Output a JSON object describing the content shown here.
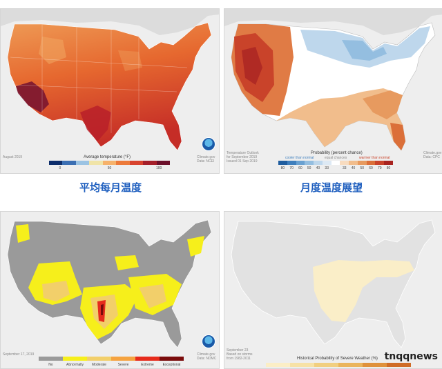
{
  "panels": {
    "avg_temp": {
      "date": "August 2019",
      "credit_line1": "Climate.gov",
      "credit_line2": "Data: NCEI",
      "legend_title": "Average temperature (°F)",
      "ticks": [
        "0",
        "50",
        "100"
      ],
      "colors": [
        "#0c2d6b",
        "#3b6fb3",
        "#9bc3e3",
        "#f0e4a8",
        "#f6b26b",
        "#ec7a3a",
        "#d8432e",
        "#a51f2a",
        "#6b0f2a"
      ]
    },
    "outlook": {
      "issuer_line1": "Temperature Outlook",
      "issuer_line2": "for September 2019",
      "issuer_line3": "Issued 01 Sep 2019",
      "credit_line1": "Climate.gov",
      "credit_line2": "Data: CPC",
      "legend_title": "Probability (percent chance)",
      "cat_cooler": "cooler than normal",
      "cat_equal": "equal chances",
      "cat_warmer": "warmer than normal",
      "ticks": [
        "80",
        "70",
        "60",
        "50",
        "40",
        "33",
        "",
        "33",
        "40",
        "50",
        "60",
        "70",
        "80"
      ],
      "colors": [
        "#1f5d9f",
        "#3f7fbd",
        "#6aa1d1",
        "#94bee0",
        "#bed7ec",
        "#dde9f4",
        "#ffffff",
        "#f8dcc0",
        "#f1bd8c",
        "#e79a5f",
        "#db6f39",
        "#c9432a",
        "#a8231f"
      ]
    },
    "drought": {
      "date": "September 17, 2019",
      "credit_line1": "Climate.gov",
      "credit_line2": "Data: NDMC",
      "categories": [
        "No",
        "Abnormally",
        "Moderate",
        "Severe",
        "Extreme",
        "Exceptional"
      ],
      "colors": [
        "#9a9a9a",
        "#f6ef1b",
        "#f2cf6a",
        "#f5a340",
        "#e62b1c",
        "#7a0b0b"
      ]
    },
    "severe": {
      "date_line1": "September 23",
      "date_line2": "Based on storms",
      "date_line3": "from 1982-2011",
      "legend_title": "Historical Probability of Severe Weather (%)",
      "colors": [
        "#fbeec6",
        "#f7e2a6",
        "#f1cf80",
        "#eab55c",
        "#df923c",
        "#cf6c26"
      ]
    }
  },
  "captions": {
    "avg_monthly_temp": "平均每月温度",
    "monthly_temp_outlook": "月度温度展望"
  },
  "watermark": "tnqqnews"
}
